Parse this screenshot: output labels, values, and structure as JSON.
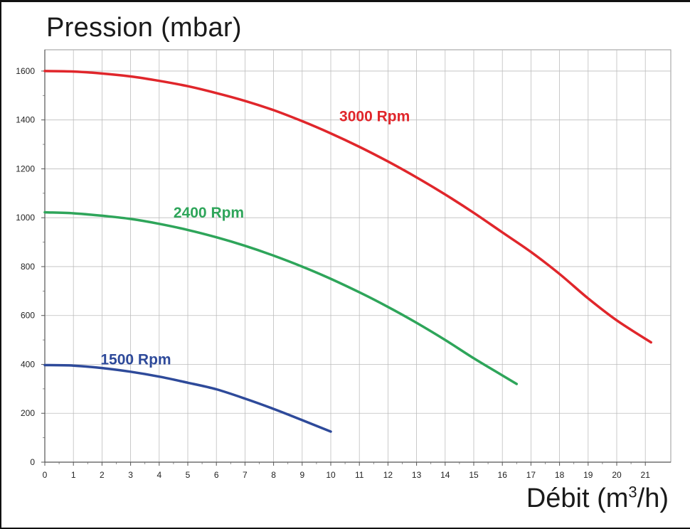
{
  "chart_data": {
    "type": "line",
    "title": "Pression (mbar)",
    "xlabel": {
      "prefix": "Débit (m",
      "sup": "3",
      "suffix": "/h)"
    },
    "xlim": [
      0,
      21.5
    ],
    "ylim": [
      0,
      1600
    ],
    "x_ticks": [
      0,
      1,
      2,
      3,
      4,
      5,
      6,
      7,
      8,
      9,
      10,
      11,
      12,
      13,
      14,
      15,
      16,
      17,
      18,
      19,
      20,
      21
    ],
    "y_ticks": [
      0,
      200,
      400,
      600,
      800,
      1000,
      1200,
      1400,
      1600
    ],
    "grid": true,
    "series": [
      {
        "name": "3000 Rpm",
        "color": "#e0262b",
        "x": [
          0,
          1,
          2,
          3,
          4,
          5,
          6,
          7,
          8,
          9,
          10,
          11,
          12,
          13,
          14,
          15,
          16,
          17,
          18,
          19,
          20,
          21.2
        ],
        "y": [
          1600,
          1598,
          1590,
          1578,
          1560,
          1538,
          1510,
          1478,
          1440,
          1395,
          1345,
          1290,
          1230,
          1165,
          1095,
          1020,
          940,
          860,
          770,
          670,
          580,
          490
        ]
      },
      {
        "name": "2400 Rpm",
        "color": "#2ea55a",
        "x": [
          0,
          1,
          2,
          3,
          4,
          5,
          6,
          7,
          8,
          9,
          10,
          11,
          12,
          13,
          14,
          15,
          16,
          16.5
        ],
        "y": [
          1022,
          1018,
          1008,
          995,
          975,
          950,
          920,
          885,
          845,
          800,
          750,
          695,
          635,
          570,
          500,
          425,
          355,
          320
        ]
      },
      {
        "name": "1500 Rpm",
        "color": "#2e4a9a",
        "x": [
          0,
          1,
          2,
          3,
          4,
          5,
          6,
          7,
          8,
          9,
          10
        ],
        "y": [
          397,
          395,
          385,
          370,
          350,
          325,
          298,
          260,
          218,
          172,
          125
        ]
      }
    ]
  }
}
